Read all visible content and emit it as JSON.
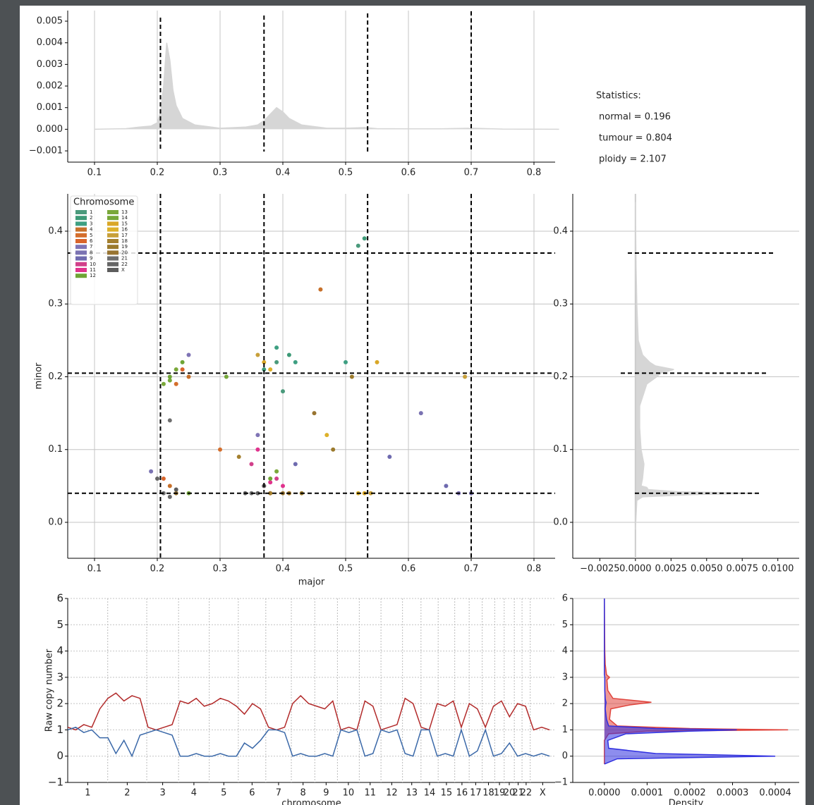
{
  "chart_data": [
    {
      "type": "area",
      "x": [
        0.1,
        0.15,
        0.17,
        0.19,
        0.2,
        0.205,
        0.21,
        0.215,
        0.22,
        0.225,
        0.23,
        0.24,
        0.26,
        0.3,
        0.34,
        0.36,
        0.37,
        0.38,
        0.39,
        0.4,
        0.41,
        0.43,
        0.47,
        0.5,
        0.53,
        0.55,
        0.6,
        0.65,
        0.7,
        0.75,
        0.84
      ],
      "values": [
        0,
        3e-05,
        0.0001,
        0.00015,
        0.0003,
        0.0008,
        0.002,
        0.004,
        0.0032,
        0.0018,
        0.0011,
        0.0005,
        0.0002,
        5e-05,
        0.0001,
        0.0002,
        0.0004,
        0.0007,
        0.001,
        0.0008,
        0.0005,
        0.0002,
        5e-05,
        5e-05,
        8e-05,
        3e-05,
        2e-05,
        2e-05,
        5e-05,
        1e-05,
        0
      ],
      "color": "#d6d6d6",
      "xlim": [
        0.0573,
        0.8337
      ],
      "ylim": [
        -0.00152,
        0.00549
      ],
      "xticks": [
        0.1,
        0.2,
        0.3,
        0.4,
        0.5,
        0.6,
        0.7,
        0.8
      ],
      "yticks": [
        {
          "value": -0.001,
          "label": "−0.001"
        },
        {
          "value": 0,
          "label": "0.000"
        },
        0.001,
        0.002,
        0.003,
        0.004,
        0.005
      ],
      "vlines": [
        0.205,
        0.37,
        0.535,
        0.7
      ],
      "grid": "x",
      "annotations": [
        "Statistics:",
        "normal = 0.196",
        "tumour = 0.804",
        "ploidy = 2.107"
      ]
    },
    {
      "type": "scatter",
      "xlabel": "major",
      "ylabel": "minor",
      "legend_title": "Chromosome",
      "xlim": [
        0.0573,
        0.8337
      ],
      "ylim": [
        -0.0494,
        0.4513
      ],
      "xticks": [
        0.1,
        0.2,
        0.3,
        0.4,
        0.5,
        0.6,
        0.7,
        0.8
      ],
      "yticks": [
        {
          "value": 0,
          "label": "0.0"
        },
        0.1,
        0.2,
        0.3,
        0.4
      ],
      "vlines": [
        0.205,
        0.37,
        0.535,
        0.7
      ],
      "hlines": [
        0.37,
        0.205,
        0.04
      ],
      "grid": "both",
      "series": [
        {
          "name": "1",
          "color": "#4a9a7c",
          "x": [
            0.39,
            0.4,
            0.52
          ],
          "y": [
            0.22,
            0.18,
            0.38
          ]
        },
        {
          "name": "2",
          "color": "#3d9a77",
          "x": [
            0.41,
            0.37,
            0.53
          ],
          "y": [
            0.23,
            0.21,
            0.39
          ]
        },
        {
          "name": "3",
          "color": "#3e9f82",
          "x": [
            0.42,
            0.39,
            0.5
          ],
          "y": [
            0.22,
            0.24,
            0.22
          ]
        },
        {
          "name": "4",
          "color": "#c7702a",
          "x": [
            0.22,
            0.25,
            0.46
          ],
          "y": [
            0.05,
            0.2,
            0.32
          ]
        },
        {
          "name": "5",
          "color": "#d46e2c",
          "x": [
            0.23,
            0.38,
            0.3
          ],
          "y": [
            0.19,
            0.04,
            0.1
          ]
        },
        {
          "name": "6",
          "color": "#d9652b",
          "x": [
            0.21,
            0.24,
            0.41
          ],
          "y": [
            0.06,
            0.21,
            0.04
          ]
        },
        {
          "name": "7",
          "color": "#7f74b5",
          "x": [
            0.68,
            0.36,
            0.25
          ],
          "y": [
            0.04,
            0.12,
            0.23
          ]
        },
        {
          "name": "8",
          "color": "#7a72b2",
          "x": [
            0.7,
            0.19,
            0.62
          ],
          "y": [
            0.04,
            0.07,
            0.15
          ]
        },
        {
          "name": "9",
          "color": "#6e6aaf",
          "x": [
            0.66,
            0.57,
            0.42
          ],
          "y": [
            0.05,
            0.09,
            0.08
          ]
        },
        {
          "name": "10",
          "color": "#d1408a",
          "x": [
            0.37,
            0.35,
            0.39
          ],
          "y": [
            0.05,
            0.08,
            0.06
          ]
        },
        {
          "name": "11",
          "color": "#e0338d",
          "x": [
            0.38,
            0.36,
            0.4
          ],
          "y": [
            0.055,
            0.1,
            0.05
          ]
        },
        {
          "name": "12",
          "color": "#6fa535",
          "x": [
            0.22,
            0.24,
            0.38
          ],
          "y": [
            0.2,
            0.22,
            0.06
          ]
        },
        {
          "name": "13",
          "color": "#7aa83a",
          "x": [
            0.23,
            0.21,
            0.39
          ],
          "y": [
            0.21,
            0.19,
            0.07
          ]
        },
        {
          "name": "14",
          "color": "#76a83a",
          "x": [
            0.22,
            0.25,
            0.31
          ],
          "y": [
            0.195,
            0.04,
            0.2
          ]
        },
        {
          "name": "15",
          "color": "#d9a727",
          "x": [
            0.37,
            0.53,
            0.55
          ],
          "y": [
            0.22,
            0.04,
            0.22
          ]
        },
        {
          "name": "16",
          "color": "#ddb12a",
          "x": [
            0.38,
            0.52,
            0.47
          ],
          "y": [
            0.21,
            0.04,
            0.12
          ]
        },
        {
          "name": "17",
          "color": "#c8a03a",
          "x": [
            0.36,
            0.54,
            0.69
          ],
          "y": [
            0.23,
            0.04,
            0.2
          ]
        },
        {
          "name": "18",
          "color": "#a4802f",
          "x": [
            0.38,
            0.41,
            0.33
          ],
          "y": [
            0.04,
            0.04,
            0.09
          ]
        },
        {
          "name": "19",
          "color": "#9b7a2c",
          "x": [
            0.43,
            0.51,
            0.48
          ],
          "y": [
            0.04,
            0.2,
            0.1
          ]
        },
        {
          "name": "20",
          "color": "#987431",
          "x": [
            0.4,
            0.23,
            0.45
          ],
          "y": [
            0.04,
            0.04,
            0.15
          ]
        },
        {
          "name": "21",
          "color": "#6e6e6e",
          "x": [
            0.21,
            0.35,
            0.22
          ],
          "y": [
            0.04,
            0.04,
            0.14
          ]
        },
        {
          "name": "22",
          "color": "#666666",
          "x": [
            0.22,
            0.34,
            0.2
          ],
          "y": [
            0.035,
            0.04,
            0.06
          ]
        },
        {
          "name": "X",
          "color": "#5d5d5d",
          "x": [
            0.23,
            0.36,
            0.37
          ],
          "y": [
            0.045,
            0.04,
            0.05
          ]
        }
      ]
    },
    {
      "type": "hdensity",
      "y": [
        -0.01,
        0.03,
        0.035,
        0.038,
        0.04,
        0.042,
        0.045,
        0.048,
        0.05,
        0.06,
        0.08,
        0.1,
        0.13,
        0.16,
        0.19,
        0.2,
        0.205,
        0.21,
        0.215,
        0.22,
        0.23,
        0.25,
        0.3,
        0.35,
        0.4,
        0.44
      ],
      "values": [
        0,
        0.0001,
        0.0005,
        0.004,
        0.0084,
        0.003,
        0.0009,
        0.0008,
        0.0004,
        0.0005,
        0.0006,
        0.0004,
        0.0003,
        0.0003,
        0.0008,
        0.0015,
        0.0018,
        0.0027,
        0.0014,
        0.001,
        0.0005,
        0.0002,
        0.0001,
        5e-05,
        2e-05,
        0
      ],
      "color": "#d6d6d6",
      "xlim": [
        -0.0044,
        0.0115
      ],
      "ylim": [
        -0.0494,
        0.4513
      ],
      "xticks": [
        {
          "value": -0.0025,
          "label": "−0.0025"
        },
        {
          "value": 0,
          "label": "0.0000"
        },
        0.0025,
        {
          "value": 0.005,
          "label": "0.0050"
        },
        0.0075,
        {
          "value": 0.01,
          "label": "0.0100"
        }
      ],
      "yticks": [
        {
          "value": 0,
          "label": "0.0"
        },
        0.1,
        0.2,
        0.3,
        0.4
      ],
      "hlines": [
        0.37,
        0.205,
        0.04
      ],
      "grid": "y"
    },
    {
      "type": "line",
      "ylabel": "Raw copy number",
      "xlabel": "chromosome",
      "xlim": [
        0,
        3034
      ],
      "ylim": [
        -1,
        6
      ],
      "xticks": [
        {
          "value": 124.5,
          "label": "1"
        },
        {
          "value": 370.5,
          "label": "2"
        },
        {
          "value": 591,
          "label": "3"
        },
        {
          "value": 785.5,
          "label": "4"
        },
        {
          "value": 971.5,
          "label": "5"
        },
        {
          "value": 1147.5,
          "label": "6"
        },
        {
          "value": 1312.5,
          "label": "7"
        },
        {
          "value": 1465,
          "label": "8"
        },
        {
          "value": 1608.5,
          "label": "9"
        },
        {
          "value": 1747,
          "label": "10"
        },
        {
          "value": 1882.5,
          "label": "11"
        },
        {
          "value": 2017,
          "label": "12"
        },
        {
          "value": 2141.5,
          "label": "13"
        },
        {
          "value": 2252.5,
          "label": "14"
        },
        {
          "value": 2357.5,
          "label": "15"
        },
        {
          "value": 2454,
          "label": "16"
        },
        {
          "value": 2539.5,
          "label": "17"
        },
        {
          "value": 2619,
          "label": "18"
        },
        {
          "value": 2687.5,
          "label": "19"
        },
        {
          "value": 2748.5,
          "label": "20"
        },
        {
          "value": 2804,
          "label": "21"
        },
        {
          "value": 2853.5,
          "label": "22"
        },
        {
          "value": 2956.5,
          "label": "X"
        }
      ],
      "xgrid": [
        249,
        492,
        690,
        881,
        1062,
        1233,
        1392,
        1538,
        1679,
        1815,
        1950,
        2084,
        2199,
        2306,
        2409,
        2499,
        2580,
        2658,
        2717,
        2780,
        2828,
        2879
      ],
      "yticks": [
        {
          "value": -1,
          "label": "−1"
        },
        0,
        1,
        2,
        3,
        4,
        5,
        6
      ],
      "grid": "y",
      "x": [
        0,
        50,
        100,
        150,
        200,
        250,
        300,
        350,
        400,
        450,
        500,
        550,
        600,
        650,
        700,
        750,
        800,
        850,
        900,
        950,
        1000,
        1050,
        1100,
        1150,
        1200,
        1250,
        1300,
        1350,
        1400,
        1450,
        1500,
        1550,
        1600,
        1650,
        1700,
        1750,
        1800,
        1850,
        1900,
        1950,
        2000,
        2050,
        2100,
        2150,
        2200,
        2250,
        2300,
        2350,
        2400,
        2450,
        2500,
        2550,
        2600,
        2650,
        2700,
        2750,
        2800,
        2850,
        2900,
        2950,
        3000
      ],
      "series": [
        {
          "color": "#b22a2a",
          "values": [
            1.1,
            1.0,
            1.2,
            1.1,
            1.8,
            2.2,
            2.4,
            2.1,
            2.3,
            2.2,
            1.1,
            1.0,
            1.1,
            1.2,
            2.1,
            2.0,
            2.2,
            1.9,
            2.0,
            2.2,
            2.1,
            1.9,
            1.6,
            2.0,
            1.8,
            1.1,
            1.0,
            1.1,
            2.0,
            2.3,
            2.0,
            1.9,
            1.8,
            2.1,
            1.0,
            1.1,
            1.0,
            2.1,
            1.9,
            1.0,
            1.1,
            1.2,
            2.2,
            2.0,
            1.1,
            1.0,
            2.0,
            1.9,
            2.1,
            1.1,
            2.0,
            1.8,
            1.1,
            1.9,
            2.1,
            1.5,
            2.0,
            1.9,
            1.0,
            1.1,
            1.0
          ]
        },
        {
          "color": "#3a68a8",
          "values": [
            1.0,
            1.1,
            0.9,
            1.0,
            0.7,
            0.7,
            0.1,
            0.6,
            0.0,
            0.8,
            0.9,
            1.0,
            0.9,
            0.8,
            0.0,
            0.0,
            0.1,
            0.0,
            0.0,
            0.1,
            0.0,
            0.0,
            0.5,
            0.3,
            0.6,
            1.0,
            1.0,
            0.9,
            0.0,
            0.1,
            0.0,
            0.0,
            0.1,
            0.0,
            1.0,
            0.9,
            1.0,
            0.0,
            0.1,
            1.0,
            0.9,
            1.0,
            0.1,
            0.0,
            1.0,
            1.0,
            0.0,
            0.1,
            0.0,
            1.0,
            0.0,
            0.2,
            1.0,
            0.0,
            0.1,
            0.5,
            0.0,
            0.1,
            0.0,
            0.1,
            0.0
          ]
        }
      ]
    },
    {
      "type": "hdensity-multi",
      "xlabel": "Density",
      "xlim": [
        -7.4e-05,
        0.000456
      ],
      "ylim": [
        -1,
        6
      ],
      "xticks": [
        {
          "value": 0,
          "label": "0.0000"
        },
        0.0001,
        0.0002,
        0.0003,
        0.0004
      ],
      "yticks": [
        {
          "value": -1,
          "label": "−1"
        },
        0,
        1,
        2,
        3,
        4,
        5,
        6
      ],
      "grid": "y",
      "y": [
        -0.3,
        -0.1,
        0,
        0.1,
        0.3,
        0.6,
        0.85,
        0.95,
        1,
        1.05,
        1.15,
        1.4,
        1.8,
        1.95,
        2.05,
        2.1,
        2.2,
        2.5,
        2.9,
        3,
        3.1,
        3.5,
        4,
        5,
        6
      ],
      "series": [
        {
          "color": "#e0443c",
          "values": [
            0,
            0,
            0,
            0,
            0,
            0,
            1e-05,
            0.0001,
            0.00043,
            0.0002,
            3e-05,
            1.2e-05,
            1.5e-05,
            6e-05,
            0.00011,
            8e-05,
            2e-05,
            8e-06,
            6e-06,
            1.2e-05,
            5e-06,
            2e-06,
            1e-06,
            5e-07,
            0
          ]
        },
        {
          "color": "#3030e0",
          "values": [
            0,
            3e-05,
            0.0004,
            0.00012,
            1e-05,
            8e-06,
            5e-05,
            0.0002,
            0.00031,
            0.00012,
            1e-05,
            5e-06,
            2e-06,
            3e-06,
            4e-06,
            3e-06,
            2e-06,
            1e-06,
            1e-06,
            1e-06,
            0,
            0,
            0,
            0,
            0
          ]
        }
      ]
    }
  ]
}
